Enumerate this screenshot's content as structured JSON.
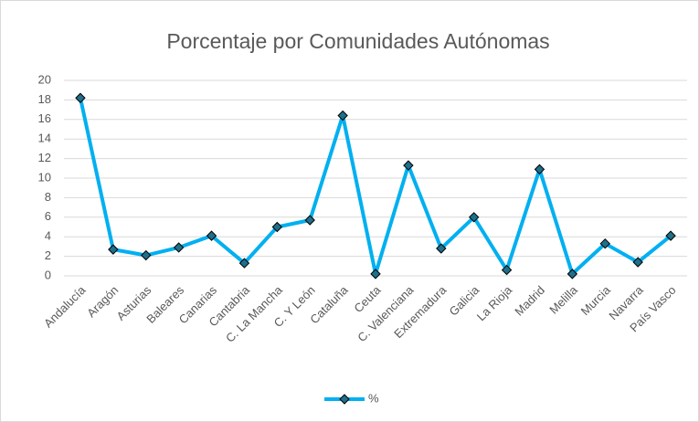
{
  "chart_data": {
    "type": "line",
    "title": "Porcentaje por Comunidades Autónomas",
    "categories": [
      "Andalucía",
      "Aragón",
      "Asturias",
      "Baleares",
      "Canarias",
      "Cantabria",
      "C. La Mancha",
      "C. Y León",
      "Cataluña",
      "Ceuta",
      "C. Valenciana",
      "Extremadura",
      "Galicia",
      "La Rioja",
      "Madrid",
      "Melilla",
      "Murcia",
      "Navarra",
      "País Vasco"
    ],
    "series": [
      {
        "name": "%",
        "color": "#00b0f0",
        "marker_color": "#1f6f8b",
        "values": [
          18.2,
          2.7,
          2.1,
          2.9,
          4.1,
          1.3,
          5.0,
          5.7,
          16.4,
          0.2,
          11.3,
          2.8,
          6.0,
          0.6,
          10.9,
          0.2,
          3.3,
          1.4,
          4.1
        ]
      }
    ],
    "ylim": [
      0,
      20
    ],
    "yticks": [
      0,
      2,
      4,
      6,
      8,
      10,
      12,
      14,
      16,
      18,
      20
    ],
    "grid": true,
    "legend": "bottom"
  }
}
